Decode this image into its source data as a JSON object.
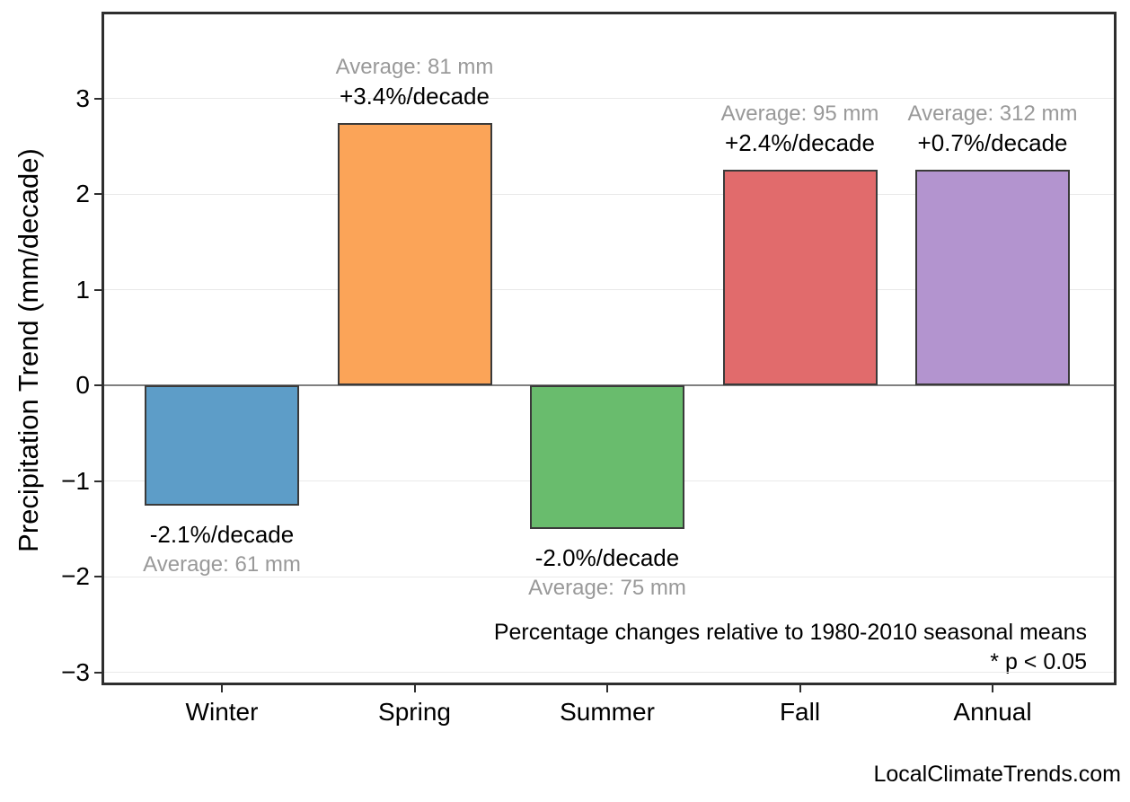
{
  "page": {
    "footer": "LocalClimateTrends.com"
  },
  "chart_data": {
    "type": "bar",
    "title": "",
    "xlabel": "",
    "ylabel": "Precipitation Trend (mm/decade)",
    "categories": [
      "Winter",
      "Spring",
      "Summer",
      "Fall",
      "Annual"
    ],
    "values": [
      -1.25,
      2.75,
      -1.5,
      2.26,
      2.26
    ],
    "units": "mm/decade",
    "trend_pct_per_decade": [
      -2.1,
      3.4,
      -2.0,
      2.4,
      0.7
    ],
    "average_mm": [
      61,
      81,
      75,
      95,
      312
    ],
    "bar_labels": [
      {
        "pct": "-2.1%/decade",
        "avg": "Average: 61 mm"
      },
      {
        "pct": "+3.4%/decade",
        "avg": "Average: 81 mm"
      },
      {
        "pct": "-2.0%/decade",
        "avg": "Average: 75 mm"
      },
      {
        "pct": "+2.4%/decade",
        "avg": "Average: 95 mm"
      },
      {
        "pct": "+0.7%/decade",
        "avg": "Average: 312 mm"
      }
    ],
    "bar_colors": [
      "#5D9DC8",
      "#FBA458",
      "#69BC6D",
      "#E16B6C",
      "#B394CF"
    ],
    "bar_edge_color": "#3A3A3A",
    "yticks": [
      -3,
      -2,
      -1,
      0,
      1,
      2,
      3
    ],
    "ytick_labels": [
      "−3",
      "−2",
      "−1",
      "0",
      "1",
      "2",
      "3"
    ],
    "ylim": [
      -3.1,
      3.9
    ],
    "grid": "horizontal",
    "grid_color": "#E9E9E9",
    "zero_line_color": "#808080",
    "label_colors": {
      "pct_text": "#000000",
      "avg_text": "#999999"
    },
    "legend": "none",
    "annotations": {
      "note_line1": "Percentage changes relative to 1980-2010 seasonal means",
      "note_line2": "* p < 0.05"
    }
  }
}
